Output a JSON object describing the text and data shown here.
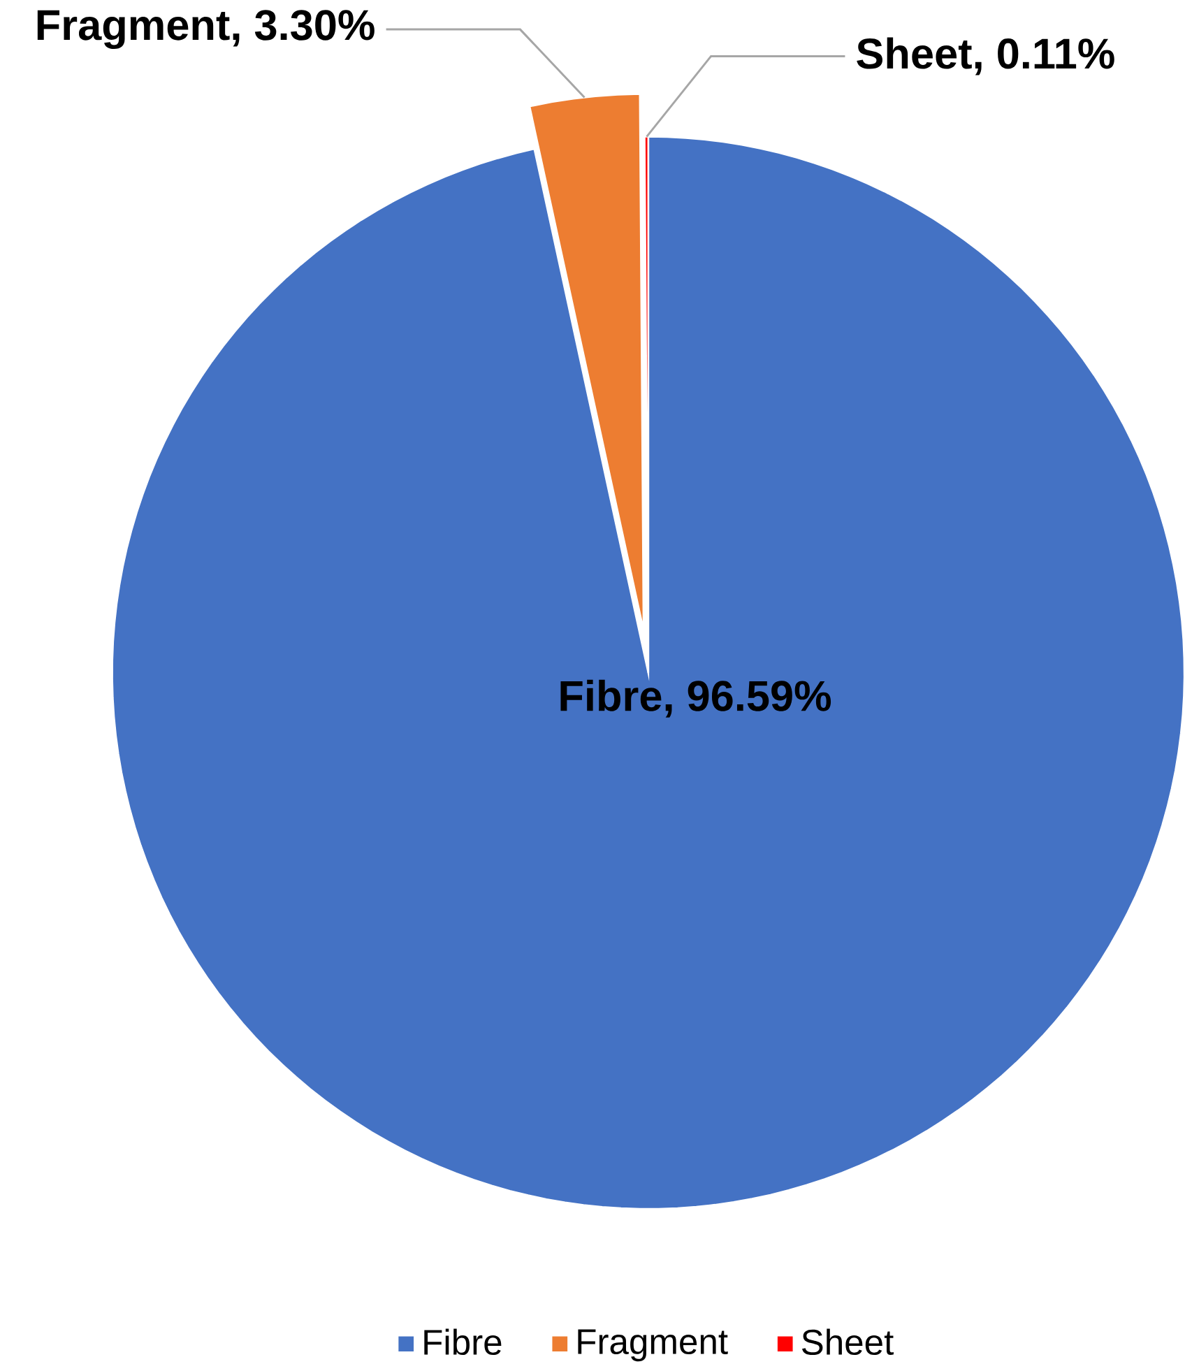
{
  "chart_data": {
    "type": "pie",
    "categories": [
      "Fibre",
      "Fragment",
      "Sheet"
    ],
    "values": [
      96.59,
      3.3,
      0.11
    ],
    "value_labels": [
      "Fibre, 96.59%",
      "Fragment, 3.30%",
      "Sheet, 0.11%"
    ],
    "colors": [
      "#4472c4",
      "#ed7d31",
      "#ff0000"
    ],
    "legend": "bottom"
  }
}
